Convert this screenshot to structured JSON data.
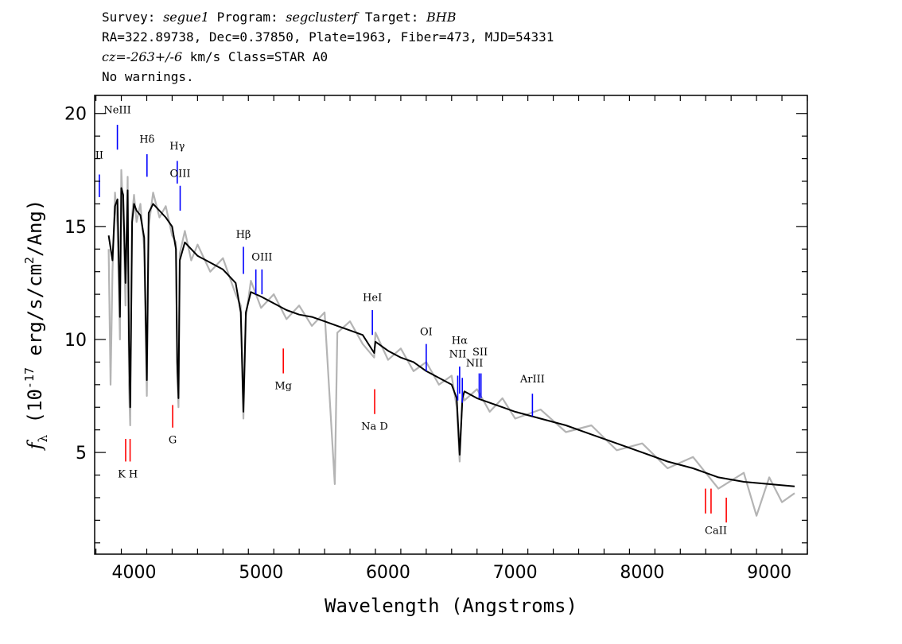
{
  "header": {
    "survey_label": "Survey:",
    "survey": "segue1",
    "program_label": "Program:",
    "program": "segclusterf",
    "target_label": "Target:",
    "target": "BHB",
    "line2": "RA=322.89738, Dec=0.37850, Plate=1963, Fiber=473, MJD=54331",
    "cz_label": "cz=",
    "cz_value": "-263+/-6",
    "cz_units": "km/s Class=STAR A0",
    "warnings": "No warnings."
  },
  "chart_data": {
    "type": "line",
    "xlabel": "Wavelength (Angstroms)",
    "ylabel": "f_λ (10^-17 erg/s/cm²/Ang)",
    "xlim": [
      3690,
      9300
    ],
    "ylim": [
      0.5,
      20.8
    ],
    "x_ticks": [
      4000,
      5000,
      6000,
      7000,
      8000,
      9000
    ],
    "y_ticks": [
      5,
      10,
      15,
      20
    ],
    "series": [
      {
        "style": "model",
        "color": "#000000",
        "points": [
          [
            3800,
            14.6
          ],
          [
            3830,
            13.5
          ],
          [
            3850,
            15.9
          ],
          [
            3870,
            16.2
          ],
          [
            3889,
            11.0
          ],
          [
            3900,
            16.7
          ],
          [
            3915,
            16.4
          ],
          [
            3933,
            12.5
          ],
          [
            3950,
            16.6
          ],
          [
            3960,
            10.0
          ],
          [
            3970,
            7.0
          ],
          [
            3985,
            15.2
          ],
          [
            4000,
            16.0
          ],
          [
            4020,
            15.7
          ],
          [
            4050,
            15.5
          ],
          [
            4080,
            14.5
          ],
          [
            4101,
            8.2
          ],
          [
            4115,
            15.6
          ],
          [
            4150,
            16.0
          ],
          [
            4200,
            15.7
          ],
          [
            4250,
            15.4
          ],
          [
            4300,
            15.0
          ],
          [
            4330,
            14.0
          ],
          [
            4340,
            9.0
          ],
          [
            4350,
            7.4
          ],
          [
            4360,
            13.5
          ],
          [
            4400,
            14.3
          ],
          [
            4450,
            14.0
          ],
          [
            4500,
            13.7
          ],
          [
            4600,
            13.4
          ],
          [
            4700,
            13.1
          ],
          [
            4800,
            12.5
          ],
          [
            4840,
            11.2
          ],
          [
            4861,
            6.8
          ],
          [
            4880,
            11.2
          ],
          [
            4920,
            12.1
          ],
          [
            5000,
            11.9
          ],
          [
            5100,
            11.6
          ],
          [
            5200,
            11.3
          ],
          [
            5300,
            11.1
          ],
          [
            5400,
            11.0
          ],
          [
            5500,
            10.8
          ],
          [
            5600,
            10.6
          ],
          [
            5700,
            10.4
          ],
          [
            5800,
            10.2
          ],
          [
            5890,
            9.4
          ],
          [
            5900,
            9.9
          ],
          [
            6000,
            9.5
          ],
          [
            6100,
            9.2
          ],
          [
            6200,
            9.0
          ],
          [
            6300,
            8.6
          ],
          [
            6400,
            8.3
          ],
          [
            6500,
            8.0
          ],
          [
            6540,
            7.4
          ],
          [
            6563,
            4.9
          ],
          [
            6585,
            7.4
          ],
          [
            6600,
            7.7
          ],
          [
            6700,
            7.4
          ],
          [
            6800,
            7.2
          ],
          [
            6900,
            7.0
          ],
          [
            7000,
            6.8
          ],
          [
            7200,
            6.5
          ],
          [
            7400,
            6.2
          ],
          [
            7600,
            5.8
          ],
          [
            7800,
            5.4
          ],
          [
            8000,
            5.0
          ],
          [
            8200,
            4.6
          ],
          [
            8400,
            4.3
          ],
          [
            8600,
            3.9
          ],
          [
            8800,
            3.7
          ],
          [
            9000,
            3.6
          ],
          [
            9200,
            3.5
          ]
        ]
      },
      {
        "style": "flux",
        "color": "#b4b4b4",
        "points": [
          [
            3800,
            14.0
          ],
          [
            3815,
            8.0
          ],
          [
            3830,
            13.0
          ],
          [
            3850,
            16.5
          ],
          [
            3870,
            15.0
          ],
          [
            3889,
            10.0
          ],
          [
            3900,
            17.5
          ],
          [
            3915,
            15.5
          ],
          [
            3933,
            11.5
          ],
          [
            3950,
            17.2
          ],
          [
            3960,
            8.0
          ],
          [
            3970,
            6.2
          ],
          [
            3985,
            15.5
          ],
          [
            4000,
            16.4
          ],
          [
            4020,
            15.2
          ],
          [
            4050,
            16.0
          ],
          [
            4080,
            14.0
          ],
          [
            4101,
            7.5
          ],
          [
            4115,
            15.0
          ],
          [
            4150,
            16.5
          ],
          [
            4200,
            15.4
          ],
          [
            4250,
            15.9
          ],
          [
            4300,
            14.6
          ],
          [
            4330,
            14.3
          ],
          [
            4340,
            8.5
          ],
          [
            4350,
            7.0
          ],
          [
            4360,
            13.8
          ],
          [
            4400,
            14.8
          ],
          [
            4450,
            13.5
          ],
          [
            4500,
            14.2
          ],
          [
            4600,
            13.0
          ],
          [
            4700,
            13.6
          ],
          [
            4800,
            12.0
          ],
          [
            4840,
            11.5
          ],
          [
            4861,
            6.5
          ],
          [
            4880,
            11.0
          ],
          [
            4920,
            12.6
          ],
          [
            5000,
            11.4
          ],
          [
            5100,
            12.0
          ],
          [
            5200,
            10.9
          ],
          [
            5300,
            11.5
          ],
          [
            5400,
            10.6
          ],
          [
            5500,
            11.2
          ],
          [
            5580,
            3.6
          ],
          [
            5600,
            10.3
          ],
          [
            5700,
            10.8
          ],
          [
            5800,
            9.8
          ],
          [
            5890,
            9.2
          ],
          [
            5900,
            10.3
          ],
          [
            6000,
            9.1
          ],
          [
            6100,
            9.6
          ],
          [
            6200,
            8.6
          ],
          [
            6300,
            9.0
          ],
          [
            6400,
            8.0
          ],
          [
            6500,
            8.4
          ],
          [
            6540,
            7.0
          ],
          [
            6563,
            4.6
          ],
          [
            6585,
            7.6
          ],
          [
            6600,
            7.3
          ],
          [
            6700,
            7.8
          ],
          [
            6800,
            6.8
          ],
          [
            6900,
            7.4
          ],
          [
            7000,
            6.5
          ],
          [
            7200,
            6.9
          ],
          [
            7400,
            5.9
          ],
          [
            7600,
            6.2
          ],
          [
            7800,
            5.1
          ],
          [
            8000,
            5.4
          ],
          [
            8200,
            4.3
          ],
          [
            8400,
            4.8
          ],
          [
            8600,
            3.4
          ],
          [
            8800,
            4.1
          ],
          [
            8900,
            2.2
          ],
          [
            9000,
            3.9
          ],
          [
            9100,
            2.8
          ],
          [
            9200,
            3.2
          ]
        ]
      }
    ],
    "emission_lines": [
      {
        "label": "OII",
        "wavelength": 3727,
        "y_top": 17.3,
        "y_bottom": 16.3,
        "color": "#0000ff"
      },
      {
        "label": "NeIII",
        "wavelength": 3869,
        "y_top": 19.5,
        "y_bottom": 18.4,
        "color": "#0000ff"
      },
      {
        "label": "Hδ",
        "wavelength": 4102,
        "y_top": 18.2,
        "y_bottom": 17.2,
        "color": "#0000ff"
      },
      {
        "label": "Hγ",
        "wavelength": 4340,
        "y_top": 17.9,
        "y_bottom": 16.9,
        "color": "#0000ff"
      },
      {
        "label": "OIII",
        "wavelength": 4363,
        "y_top": 16.8,
        "y_bottom": 15.7,
        "color": "#0000ff"
      },
      {
        "label": "Hβ",
        "wavelength": 4861,
        "y_top": 14.1,
        "y_bottom": 12.9,
        "color": "#0000ff"
      },
      {
        "label": "OIII",
        "wavelength": 4959,
        "y_top": 13.1,
        "y_bottom": 12.0,
        "color": "#0000ff"
      },
      {
        "label": "OIII",
        "wavelength": 5007,
        "y_top": 13.1,
        "y_bottom": 12.0,
        "color": "#0000ff"
      },
      {
        "label": "HeI",
        "wavelength": 5876,
        "y_top": 11.3,
        "y_bottom": 10.2,
        "color": "#0000ff"
      },
      {
        "label": "OI",
        "wavelength": 6300,
        "y_top": 9.8,
        "y_bottom": 8.6,
        "color": "#0000ff"
      },
      {
        "label": "NII",
        "wavelength": 6548,
        "y_top": 8.4,
        "y_bottom": 7.3,
        "color": "#0000ff"
      },
      {
        "label": "Hα",
        "wavelength": 6563,
        "y_top": 8.8,
        "y_bottom": 7.6,
        "color": "#0000ff"
      },
      {
        "label": "NII",
        "wavelength": 6584,
        "y_top": 8.3,
        "y_bottom": 7.2,
        "color": "#0000ff"
      },
      {
        "label": "SII",
        "wavelength": 6717,
        "y_top": 8.5,
        "y_bottom": 7.4,
        "color": "#0000ff"
      },
      {
        "label": "SII",
        "wavelength": 6731,
        "y_top": 8.5,
        "y_bottom": 7.4,
        "color": "#0000ff"
      },
      {
        "label": "ArIII",
        "wavelength": 7136,
        "y_top": 7.6,
        "y_bottom": 6.6,
        "color": "#0000ff"
      }
    ],
    "emission_text_labels": [
      {
        "text": "II",
        "wavelength": 3727,
        "y": 18.0
      },
      {
        "text": "NeIII",
        "wavelength": 3869,
        "y": 20.0
      },
      {
        "text": "Hδ",
        "wavelength": 4102,
        "y": 18.7
      },
      {
        "text": "Hγ",
        "wavelength": 4340,
        "y": 18.4
      },
      {
        "text": "OIII",
        "wavelength": 4363,
        "y": 17.2
      },
      {
        "text": "Hβ",
        "wavelength": 4861,
        "y": 14.5
      },
      {
        "text": "OIII",
        "wavelength": 5007,
        "y": 13.5
      },
      {
        "text": "HeI",
        "wavelength": 5876,
        "y": 11.7
      },
      {
        "text": "OI",
        "wavelength": 6300,
        "y": 10.2
      },
      {
        "text": "NII",
        "wavelength": 6548,
        "y": 9.2
      },
      {
        "text": "Hα",
        "wavelength": 6563,
        "y": 9.8
      },
      {
        "text": "NII",
        "wavelength": 6680,
        "y": 8.8
      },
      {
        "text": "SII",
        "wavelength": 6724,
        "y": 9.3
      },
      {
        "text": "ArIII",
        "wavelength": 7136,
        "y": 8.1
      }
    ],
    "absorption_lines": [
      {
        "label": "K",
        "wavelength": 3934,
        "y_top": 5.6,
        "y_bottom": 4.6,
        "color": "#ff0000"
      },
      {
        "label": "H",
        "wavelength": 3969,
        "y_top": 5.6,
        "y_bottom": 4.6,
        "color": "#ff0000"
      },
      {
        "label": "G",
        "wavelength": 4304,
        "y_top": 7.1,
        "y_bottom": 6.1,
        "color": "#ff0000"
      },
      {
        "label": "Mg",
        "wavelength": 5175,
        "y_top": 9.6,
        "y_bottom": 8.5,
        "color": "#ff0000"
      },
      {
        "label": "Na D",
        "wavelength": 5894,
        "y_top": 7.8,
        "y_bottom": 6.7,
        "color": "#ff0000"
      },
      {
        "label": "CaII",
        "wavelength": 8498,
        "y_top": 3.4,
        "y_bottom": 2.3,
        "color": "#ff0000"
      },
      {
        "label": "CaII",
        "wavelength": 8542,
        "y_top": 3.4,
        "y_bottom": 2.3,
        "color": "#ff0000"
      },
      {
        "label": "CaII",
        "wavelength": 8662,
        "y_top": 3.0,
        "y_bottom": 1.9,
        "color": "#ff0000"
      }
    ],
    "absorption_text_labels": [
      {
        "text": "K H",
        "wavelength": 3951,
        "y": 3.9
      },
      {
        "text": "G",
        "wavelength": 4304,
        "y": 5.4
      },
      {
        "text": "Mg",
        "wavelength": 5175,
        "y": 7.8
      },
      {
        "text": "Na  D",
        "wavelength": 5894,
        "y": 6.0
      },
      {
        "text": "CaII",
        "wavelength": 8580,
        "y": 1.4
      }
    ]
  }
}
